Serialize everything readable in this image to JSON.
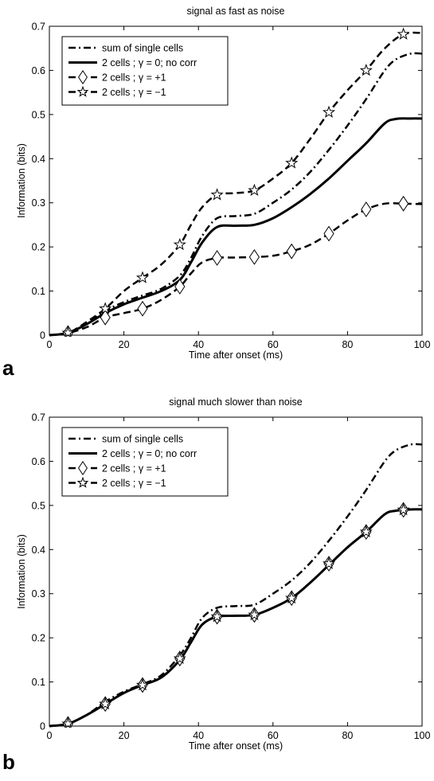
{
  "chart_data": [
    {
      "panel_label": "a",
      "type": "line",
      "title": "signal as fast as noise",
      "xlabel": "Time after onset (ms)",
      "ylabel": "Information (bits)",
      "xlim": [
        0,
        100
      ],
      "ylim": [
        0,
        0.7
      ],
      "xticks": [
        0,
        20,
        40,
        60,
        80,
        100
      ],
      "yticks": [
        0,
        0.1,
        0.2,
        0.3,
        0.4,
        0.5,
        0.6,
        0.7
      ],
      "legend_position": "top-left",
      "series": [
        {
          "name": "sum of single cells",
          "style": "dashdot",
          "marker": "none",
          "x": [
            0,
            5,
            10,
            15,
            20,
            25,
            30,
            35,
            38,
            41,
            45,
            50,
            55,
            60,
            65,
            70,
            75,
            80,
            85,
            90,
            93,
            97,
            100
          ],
          "y": [
            0,
            0.005,
            0.025,
            0.055,
            0.075,
            0.09,
            0.105,
            0.135,
            0.175,
            0.225,
            0.265,
            0.27,
            0.275,
            0.3,
            0.33,
            0.37,
            0.42,
            0.475,
            0.535,
            0.6,
            0.625,
            0.638,
            0.638
          ]
        },
        {
          "name": "2 cells ; γ = 0;  no corr",
          "style": "solid",
          "marker": "none",
          "x": [
            0,
            5,
            10,
            15,
            20,
            25,
            30,
            35,
            38,
            41,
            45,
            50,
            55,
            60,
            65,
            70,
            75,
            80,
            85,
            90,
            93,
            97,
            100
          ],
          "y": [
            0,
            0.005,
            0.025,
            0.05,
            0.07,
            0.085,
            0.1,
            0.125,
            0.165,
            0.21,
            0.245,
            0.248,
            0.25,
            0.265,
            0.29,
            0.32,
            0.355,
            0.395,
            0.435,
            0.48,
            0.49,
            0.491,
            0.491
          ]
        },
        {
          "name": "2 cells ; γ = +1",
          "style": "dashed",
          "marker": "diamond",
          "x": [
            0,
            5,
            10,
            15,
            20,
            25,
            30,
            35,
            38,
            41,
            45,
            50,
            55,
            60,
            65,
            70,
            75,
            80,
            85,
            90,
            95,
            100
          ],
          "y": [
            0,
            0.005,
            0.018,
            0.04,
            0.05,
            0.06,
            0.08,
            0.11,
            0.14,
            0.165,
            0.175,
            0.176,
            0.177,
            0.18,
            0.19,
            0.205,
            0.23,
            0.26,
            0.285,
            0.298,
            0.298,
            0.297
          ],
          "marker_x": [
            5,
            15,
            25,
            35,
            45,
            55,
            65,
            75,
            85,
            95
          ],
          "marker_y": [
            0.005,
            0.04,
            0.06,
            0.11,
            0.175,
            0.177,
            0.19,
            0.23,
            0.285,
            0.298
          ]
        },
        {
          "name": "2 cells ; γ = −1",
          "style": "dashed",
          "marker": "star",
          "x": [
            0,
            5,
            10,
            15,
            20,
            25,
            30,
            35,
            38,
            41,
            45,
            50,
            55,
            60,
            65,
            70,
            75,
            80,
            85,
            90,
            95,
            100
          ],
          "y": [
            0,
            0.005,
            0.03,
            0.06,
            0.1,
            0.13,
            0.16,
            0.205,
            0.25,
            0.29,
            0.318,
            0.322,
            0.328,
            0.355,
            0.39,
            0.445,
            0.505,
            0.555,
            0.6,
            0.65,
            0.682,
            0.685
          ],
          "marker_x": [
            5,
            15,
            25,
            35,
            45,
            55,
            65,
            75,
            85,
            95
          ],
          "marker_y": [
            0.005,
            0.06,
            0.13,
            0.205,
            0.318,
            0.328,
            0.39,
            0.505,
            0.6,
            0.682
          ]
        }
      ]
    },
    {
      "panel_label": "b",
      "type": "line",
      "title": "signal much slower than noise",
      "xlabel": "Time after onset (ms)",
      "ylabel": "Information (bits)",
      "xlim": [
        0,
        100
      ],
      "ylim": [
        0,
        0.7
      ],
      "xticks": [
        0,
        20,
        40,
        60,
        80,
        100
      ],
      "yticks": [
        0,
        0.1,
        0.2,
        0.3,
        0.4,
        0.5,
        0.6,
        0.7
      ],
      "legend_position": "top-left",
      "series": [
        {
          "name": "sum of single cells",
          "style": "dashdot",
          "marker": "none",
          "x": [
            0,
            5,
            10,
            15,
            20,
            25,
            30,
            35,
            38,
            41,
            45,
            50,
            55,
            60,
            65,
            70,
            75,
            80,
            85,
            90,
            93,
            97,
            100
          ],
          "y": [
            0,
            0.005,
            0.025,
            0.055,
            0.078,
            0.095,
            0.115,
            0.16,
            0.2,
            0.245,
            0.268,
            0.272,
            0.275,
            0.3,
            0.33,
            0.37,
            0.42,
            0.475,
            0.535,
            0.6,
            0.625,
            0.638,
            0.638
          ]
        },
        {
          "name": "2 cells ; γ = 0;  no corr",
          "style": "solid",
          "marker": "none",
          "x": [
            0,
            5,
            10,
            15,
            20,
            25,
            30,
            35,
            38,
            41,
            45,
            50,
            55,
            60,
            65,
            70,
            75,
            80,
            85,
            90,
            93,
            97,
            100
          ],
          "y": [
            0,
            0.005,
            0.025,
            0.05,
            0.075,
            0.093,
            0.11,
            0.15,
            0.19,
            0.23,
            0.248,
            0.25,
            0.252,
            0.268,
            0.29,
            0.325,
            0.365,
            0.405,
            0.44,
            0.48,
            0.488,
            0.491,
            0.491
          ]
        },
        {
          "name": "2 cells ; γ = +1",
          "style": "dashed",
          "marker": "diamond",
          "x": [
            0,
            5,
            10,
            15,
            20,
            25,
            30,
            35,
            38,
            41,
            45,
            50,
            55,
            60,
            65,
            70,
            75,
            80,
            85,
            90,
            93,
            97,
            100
          ],
          "y": [
            0,
            0.005,
            0.025,
            0.05,
            0.075,
            0.093,
            0.11,
            0.15,
            0.19,
            0.23,
            0.248,
            0.25,
            0.252,
            0.268,
            0.29,
            0.325,
            0.365,
            0.405,
            0.44,
            0.48,
            0.488,
            0.491,
            0.491
          ],
          "marker_x": [
            5,
            15,
            25,
            35,
            45,
            55,
            65,
            75,
            85,
            95
          ],
          "marker_y": [
            0.005,
            0.05,
            0.093,
            0.153,
            0.248,
            0.252,
            0.29,
            0.368,
            0.44,
            0.49
          ]
        },
        {
          "name": "2 cells ; γ = −1",
          "style": "dashed",
          "marker": "star",
          "x": [
            0,
            5,
            10,
            15,
            20,
            25,
            30,
            35,
            38,
            41,
            45,
            50,
            55,
            60,
            65,
            70,
            75,
            80,
            85,
            90,
            93,
            97,
            100
          ],
          "y": [
            0,
            0.005,
            0.025,
            0.05,
            0.075,
            0.093,
            0.11,
            0.15,
            0.19,
            0.23,
            0.248,
            0.25,
            0.252,
            0.268,
            0.29,
            0.325,
            0.365,
            0.405,
            0.44,
            0.48,
            0.488,
            0.491,
            0.491
          ],
          "marker_x": [
            5,
            15,
            25,
            35,
            45,
            55,
            65,
            75,
            85,
            95
          ],
          "marker_y": [
            0.005,
            0.05,
            0.093,
            0.153,
            0.248,
            0.252,
            0.29,
            0.368,
            0.44,
            0.49
          ]
        }
      ]
    }
  ]
}
